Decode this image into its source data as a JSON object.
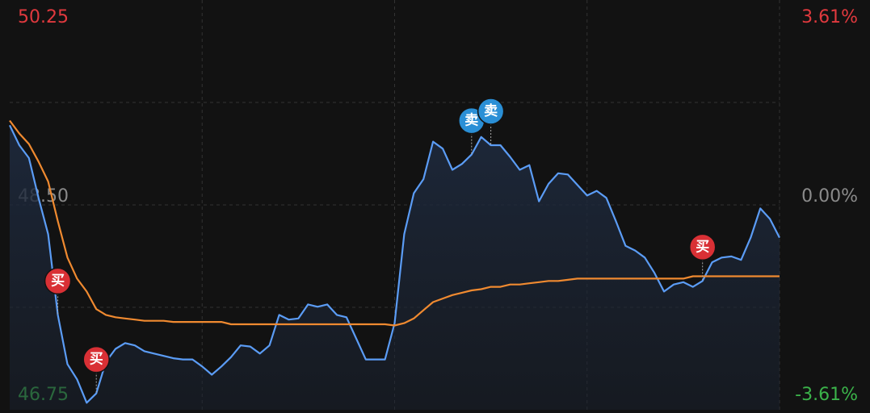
{
  "chart_data": {
    "type": "line",
    "ylim": [
      46.75,
      50.25
    ],
    "yticks": [
      50.25,
      {
        "value": 48.5,
        "label": "48.50"
      },
      46.75
    ],
    "y2lim": [
      -3.61,
      3.61
    ],
    "y2ticks": [
      {
        "value": 3.61,
        "label": "3.61%"
      },
      {
        "value": 0,
        "label": "0.00%"
      },
      {
        "value": -3.61,
        "label": "-3.61%"
      }
    ],
    "up_color": "#e0393e",
    "down_color": "#3bb34a",
    "flat_color": "#8a8a8a",
    "grid": true,
    "series": [
      {
        "color": "#5b9cf5",
        "values": [
          49.18,
          49.01,
          48.9,
          48.56,
          48.25,
          47.56,
          47.14,
          47.01,
          46.81,
          46.89,
          47.16,
          47.27,
          47.32,
          47.3,
          47.25,
          47.23,
          47.21,
          47.19,
          47.18,
          47.18,
          47.12,
          47.05,
          47.12,
          47.2,
          47.3,
          47.29,
          47.23,
          47.3,
          47.56,
          47.52,
          47.53,
          47.65,
          47.63,
          47.65,
          47.56,
          47.54,
          47.36,
          47.18,
          47.18,
          47.18,
          47.49,
          48.25,
          48.6,
          48.72,
          49.04,
          48.98,
          48.8,
          48.85,
          48.93,
          49.08,
          49.01,
          49.01,
          48.91,
          48.8,
          48.84,
          48.53,
          48.68,
          48.77,
          48.76,
          48.67,
          48.58,
          48.62,
          48.56,
          48.36,
          48.15,
          48.11,
          48.05,
          47.92,
          47.76,
          47.82,
          47.84,
          47.8,
          47.85,
          48.01,
          48.05,
          48.06,
          48.03,
          48.22,
          48.47,
          48.38,
          48.22
        ]
      },
      {
        "color": "#f08a30",
        "values": [
          49.22,
          49.11,
          49.02,
          48.87,
          48.7,
          48.36,
          48.05,
          47.87,
          47.76,
          47.61,
          47.56,
          47.54,
          47.53,
          47.52,
          47.51,
          47.51,
          47.51,
          47.5,
          47.5,
          47.5,
          47.5,
          47.5,
          47.5,
          47.48,
          47.48,
          47.48,
          47.48,
          47.48,
          47.48,
          47.48,
          47.48,
          47.48,
          47.48,
          47.48,
          47.48,
          47.48,
          47.48,
          47.48,
          47.48,
          47.48,
          47.47,
          47.49,
          47.53,
          47.6,
          47.67,
          47.7,
          47.73,
          47.75,
          47.77,
          47.78,
          47.8,
          47.8,
          47.82,
          47.82,
          47.83,
          47.84,
          47.85,
          47.85,
          47.86,
          47.87,
          47.87,
          47.87,
          47.87,
          47.87,
          47.87,
          47.87,
          47.87,
          47.87,
          47.87,
          47.87,
          47.87,
          47.89,
          47.89,
          47.89,
          47.89,
          47.89,
          47.89,
          47.89,
          47.89,
          47.89,
          47.89
        ]
      }
    ],
    "markers": [
      {
        "index": 5,
        "label": "买",
        "color": "#d93035"
      },
      {
        "index": 9,
        "label": "买",
        "color": "#d93035"
      },
      {
        "index": 48,
        "label": "卖",
        "color": "#2a8fd6"
      },
      {
        "index": 50,
        "label": "卖",
        "color": "#2a8fd6"
      },
      {
        "index": 72,
        "label": "买",
        "color": "#d93035"
      }
    ]
  }
}
